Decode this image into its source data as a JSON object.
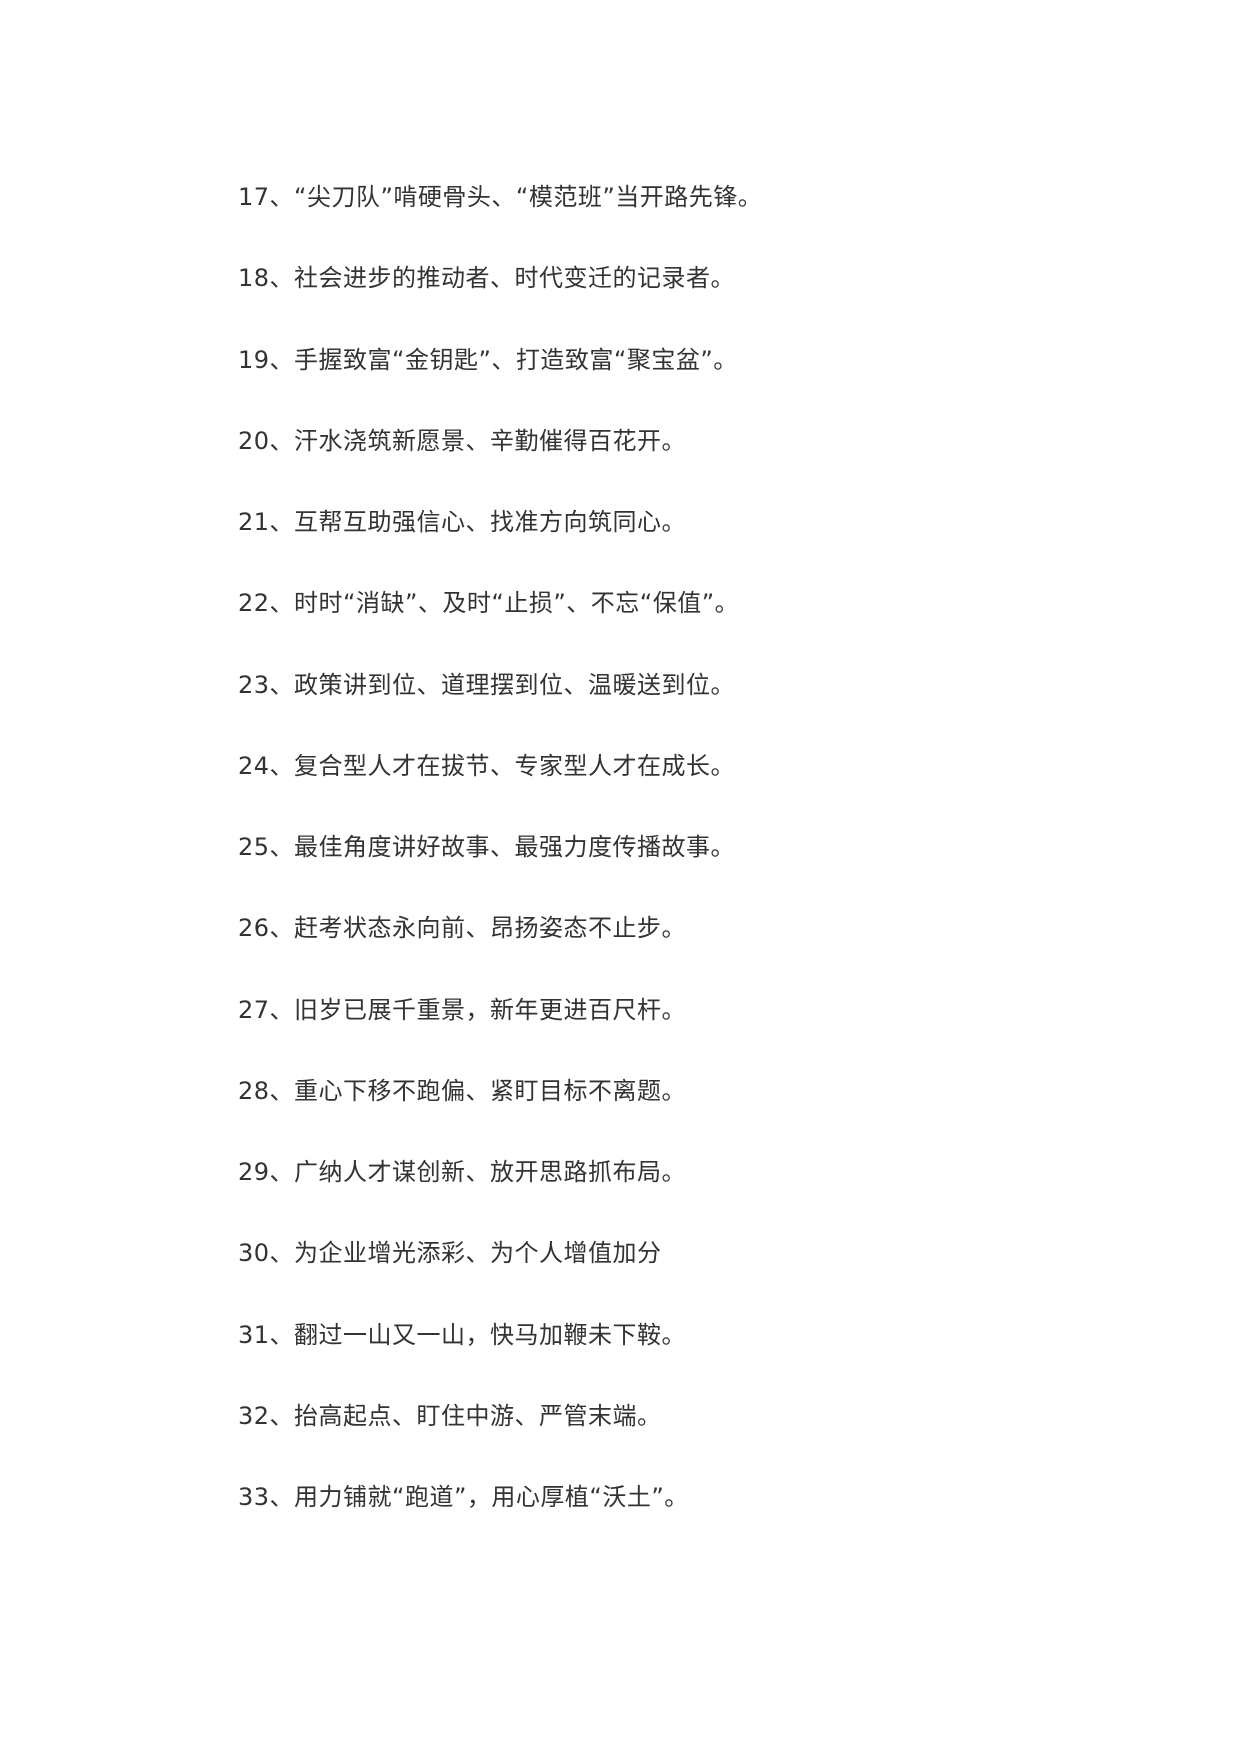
{
  "lines": [
    "17、“尖刀队”啃硬骨头、“模范班”当开路先锋。",
    "18、社会进步的推动者、时代变迁的记录者。",
    "19、手握致富“金钥匙”、打造致富“聚宝盆”。",
    "20、汗水浇筑新愿景、辛勤催得百花开。",
    "21、互帮互助强信心、找准方向筑同心。",
    "22、时时“消缺”、及时“止损”、不忘“保值”。",
    "23、政策讲到位、道理摆到位、温暖送到位。",
    "24、复合型人才在拔节、专家型人才在成长。",
    "25、最佳角度讲好故事、最强力度传播故事。",
    "26、赶考状态永向前、昂扬姿态不止步。",
    "27、旧岁已展千重景，新年更进百尺杆。",
    "28、重心下移不跑偏、紧盯目标不离题。",
    "29、广纳人才谋创新、放开思路抓布局。",
    "30、为企业增光添彩、为个人增值加分",
    "31、翻过一山又一山，快马加鞭未下鞍。",
    "32、抬高起点、盯住中游、严管末端。",
    "33、用力铺就“跑道”，用心厚植“沃土”。"
  ]
}
